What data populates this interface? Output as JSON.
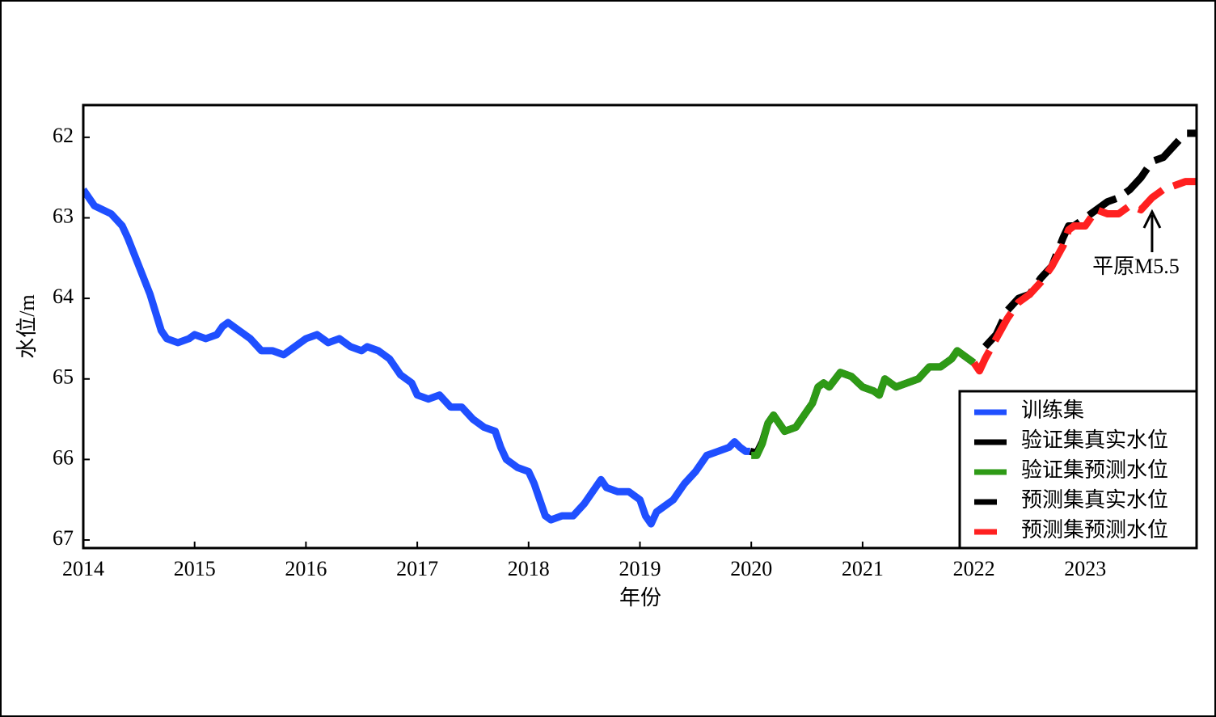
{
  "chart_data": {
    "type": "line",
    "x_label": "年份",
    "y_label": "水位/m",
    "xlim": [
      2014,
      2024
    ],
    "xticks": [
      2014,
      2015,
      2016,
      2017,
      2018,
      2019,
      2020,
      2021,
      2022,
      2023
    ],
    "ylim": [
      67.1,
      61.6
    ],
    "yticks": [
      62,
      63,
      64,
      65,
      66,
      67
    ],
    "legend": "lower right",
    "annotation": {
      "text": "平原M5.5",
      "x": 2023.6
    },
    "series": [
      {
        "name": "训练集",
        "color": "#1f4fff",
        "style": "solid",
        "x": [
          2014.0,
          2014.1,
          2014.25,
          2014.35,
          2014.4,
          2014.5,
          2014.6,
          2014.7,
          2014.75,
          2014.85,
          2014.95,
          2015.0,
          2015.1,
          2015.2,
          2015.25,
          2015.3,
          2015.4,
          2015.5,
          2015.6,
          2015.7,
          2015.8,
          2015.9,
          2016.0,
          2016.1,
          2016.2,
          2016.3,
          2016.4,
          2016.5,
          2016.55,
          2016.65,
          2016.75,
          2016.85,
          2016.95,
          2017.0,
          2017.1,
          2017.2,
          2017.3,
          2017.4,
          2017.5,
          2017.6,
          2017.7,
          2017.75,
          2017.8,
          2017.9,
          2018.0,
          2018.05,
          2018.1,
          2018.15,
          2018.2,
          2018.3,
          2018.4,
          2018.5,
          2018.6,
          2018.65,
          2018.7,
          2018.8,
          2018.9,
          2019.0,
          2019.05,
          2019.1,
          2019.15,
          2019.2,
          2019.3,
          2019.4,
          2019.5,
          2019.6,
          2019.7,
          2019.8,
          2019.85,
          2019.9,
          2019.95,
          2019.99
        ],
        "values": [
          62.65,
          62.85,
          62.95,
          63.1,
          63.25,
          63.6,
          63.95,
          64.4,
          64.5,
          64.55,
          64.5,
          64.45,
          64.5,
          64.45,
          64.35,
          64.3,
          64.4,
          64.5,
          64.65,
          64.65,
          64.7,
          64.6,
          64.5,
          64.45,
          64.55,
          64.5,
          64.6,
          64.65,
          64.6,
          64.65,
          64.75,
          64.95,
          65.05,
          65.2,
          65.25,
          65.2,
          65.35,
          65.35,
          65.5,
          65.6,
          65.65,
          65.85,
          66.0,
          66.1,
          66.15,
          66.3,
          66.5,
          66.7,
          66.75,
          66.7,
          66.7,
          66.55,
          66.35,
          66.25,
          66.35,
          66.4,
          66.4,
          66.5,
          66.7,
          66.8,
          66.65,
          66.6,
          66.5,
          66.3,
          66.15,
          65.95,
          65.9,
          65.85,
          65.78,
          65.85,
          65.9,
          65.9
        ]
      },
      {
        "name": "验证集真实水位",
        "color": "#000000",
        "style": "solid",
        "x": [
          2019.99,
          2020.05,
          2020.1,
          2020.15,
          2020.2,
          2020.25,
          2020.3,
          2020.4,
          2020.5,
          2020.55,
          2020.6,
          2020.65,
          2020.7,
          2020.8,
          2020.9,
          2021.0,
          2021.1,
          2021.15,
          2021.2,
          2021.3,
          2021.4,
          2021.5,
          2021.6,
          2021.7,
          2021.8,
          2021.85,
          2021.9,
          2022.0
        ],
        "values": [
          65.9,
          65.92,
          65.78,
          65.55,
          65.45,
          65.55,
          65.65,
          65.6,
          65.4,
          65.3,
          65.1,
          65.05,
          65.1,
          64.92,
          64.97,
          65.1,
          65.15,
          65.2,
          65.0,
          65.1,
          65.05,
          65.0,
          64.85,
          64.85,
          64.75,
          64.65,
          64.7,
          64.8
        ]
      },
      {
        "name": "验证集预测水位",
        "color": "#2e9a16",
        "style": "solid",
        "x": [
          2020.0,
          2020.05,
          2020.1,
          2020.15,
          2020.2,
          2020.25,
          2020.3,
          2020.4,
          2020.5,
          2020.55,
          2020.6,
          2020.65,
          2020.7,
          2020.8,
          2020.9,
          2021.0,
          2021.1,
          2021.15,
          2021.2,
          2021.3,
          2021.4,
          2021.5,
          2021.6,
          2021.7,
          2021.8,
          2021.85,
          2021.9,
          2022.0
        ],
        "values": [
          65.95,
          65.95,
          65.8,
          65.55,
          65.45,
          65.55,
          65.65,
          65.6,
          65.4,
          65.3,
          65.1,
          65.05,
          65.1,
          64.92,
          64.97,
          65.1,
          65.15,
          65.2,
          65.0,
          65.1,
          65.05,
          65.0,
          64.85,
          64.85,
          64.75,
          64.65,
          64.7,
          64.8
        ]
      },
      {
        "name": "预测集真实水位",
        "color": "#000000",
        "style": "dashed",
        "x": [
          2022.1,
          2022.2,
          2022.3,
          2022.4,
          2022.5,
          2022.6,
          2022.7,
          2022.8,
          2022.85,
          2022.9,
          2023.0,
          2023.1,
          2023.2,
          2023.3,
          2023.4,
          2023.5,
          2023.6,
          2023.7,
          2023.8,
          2023.9,
          2024.0
        ],
        "values": [
          64.6,
          64.45,
          64.15,
          64.0,
          63.95,
          63.75,
          63.6,
          63.25,
          63.1,
          63.1,
          63.0,
          62.9,
          62.8,
          62.75,
          62.65,
          62.5,
          62.3,
          62.25,
          62.1,
          61.95,
          61.95
        ]
      },
      {
        "name": "预测集预测水位",
        "color": "#ff2020",
        "style": "dashed",
        "x": [
          2022.0,
          2022.05,
          2022.1,
          2022.2,
          2022.3,
          2022.4,
          2022.5,
          2022.6,
          2022.7,
          2022.8,
          2022.85,
          2022.9,
          2023.0,
          2023.1,
          2023.2,
          2023.3,
          2023.4,
          2023.5,
          2023.6,
          2023.7,
          2023.8,
          2023.9,
          2024.0
        ],
        "values": [
          64.8,
          64.9,
          64.75,
          64.5,
          64.25,
          64.05,
          63.95,
          63.8,
          63.6,
          63.35,
          63.15,
          63.1,
          63.1,
          62.9,
          62.95,
          62.95,
          62.85,
          62.9,
          62.75,
          62.65,
          62.6,
          62.55,
          62.55
        ]
      }
    ]
  }
}
